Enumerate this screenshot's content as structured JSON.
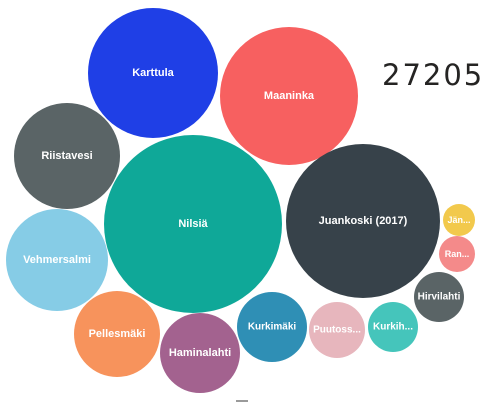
{
  "total_value": "27205",
  "chart_data": {
    "type": "bubble",
    "bubbles": [
      {
        "label": "Karttula",
        "color": "#1f3fe6"
      },
      {
        "label": "Maaninka",
        "color": "#f76060"
      },
      {
        "label": "Riistavesi",
        "color": "#5a6466"
      },
      {
        "label": "Nilsiä",
        "color": "#0fa898"
      },
      {
        "label": "Juankoski (2017)",
        "color": "#37424a"
      },
      {
        "label": "Vehmersalmi",
        "color": "#86cce6"
      },
      {
        "label": "Pellesmäki",
        "color": "#f7935c"
      },
      {
        "label": "Haminalahti",
        "color": "#a3628f"
      },
      {
        "label": "Kurkimäki",
        "color": "#2f8fb5"
      },
      {
        "label": "Puutoss...",
        "color": "#e7b6bd"
      },
      {
        "label": "Kurkih...",
        "color": "#45c5bb"
      },
      {
        "label": "Hirvilahti",
        "color": "#5a6466"
      },
      {
        "label": "Ran...",
        "color": "#f48a8a"
      },
      {
        "label": "Jän...",
        "color": "#f2c94c"
      }
    ]
  }
}
